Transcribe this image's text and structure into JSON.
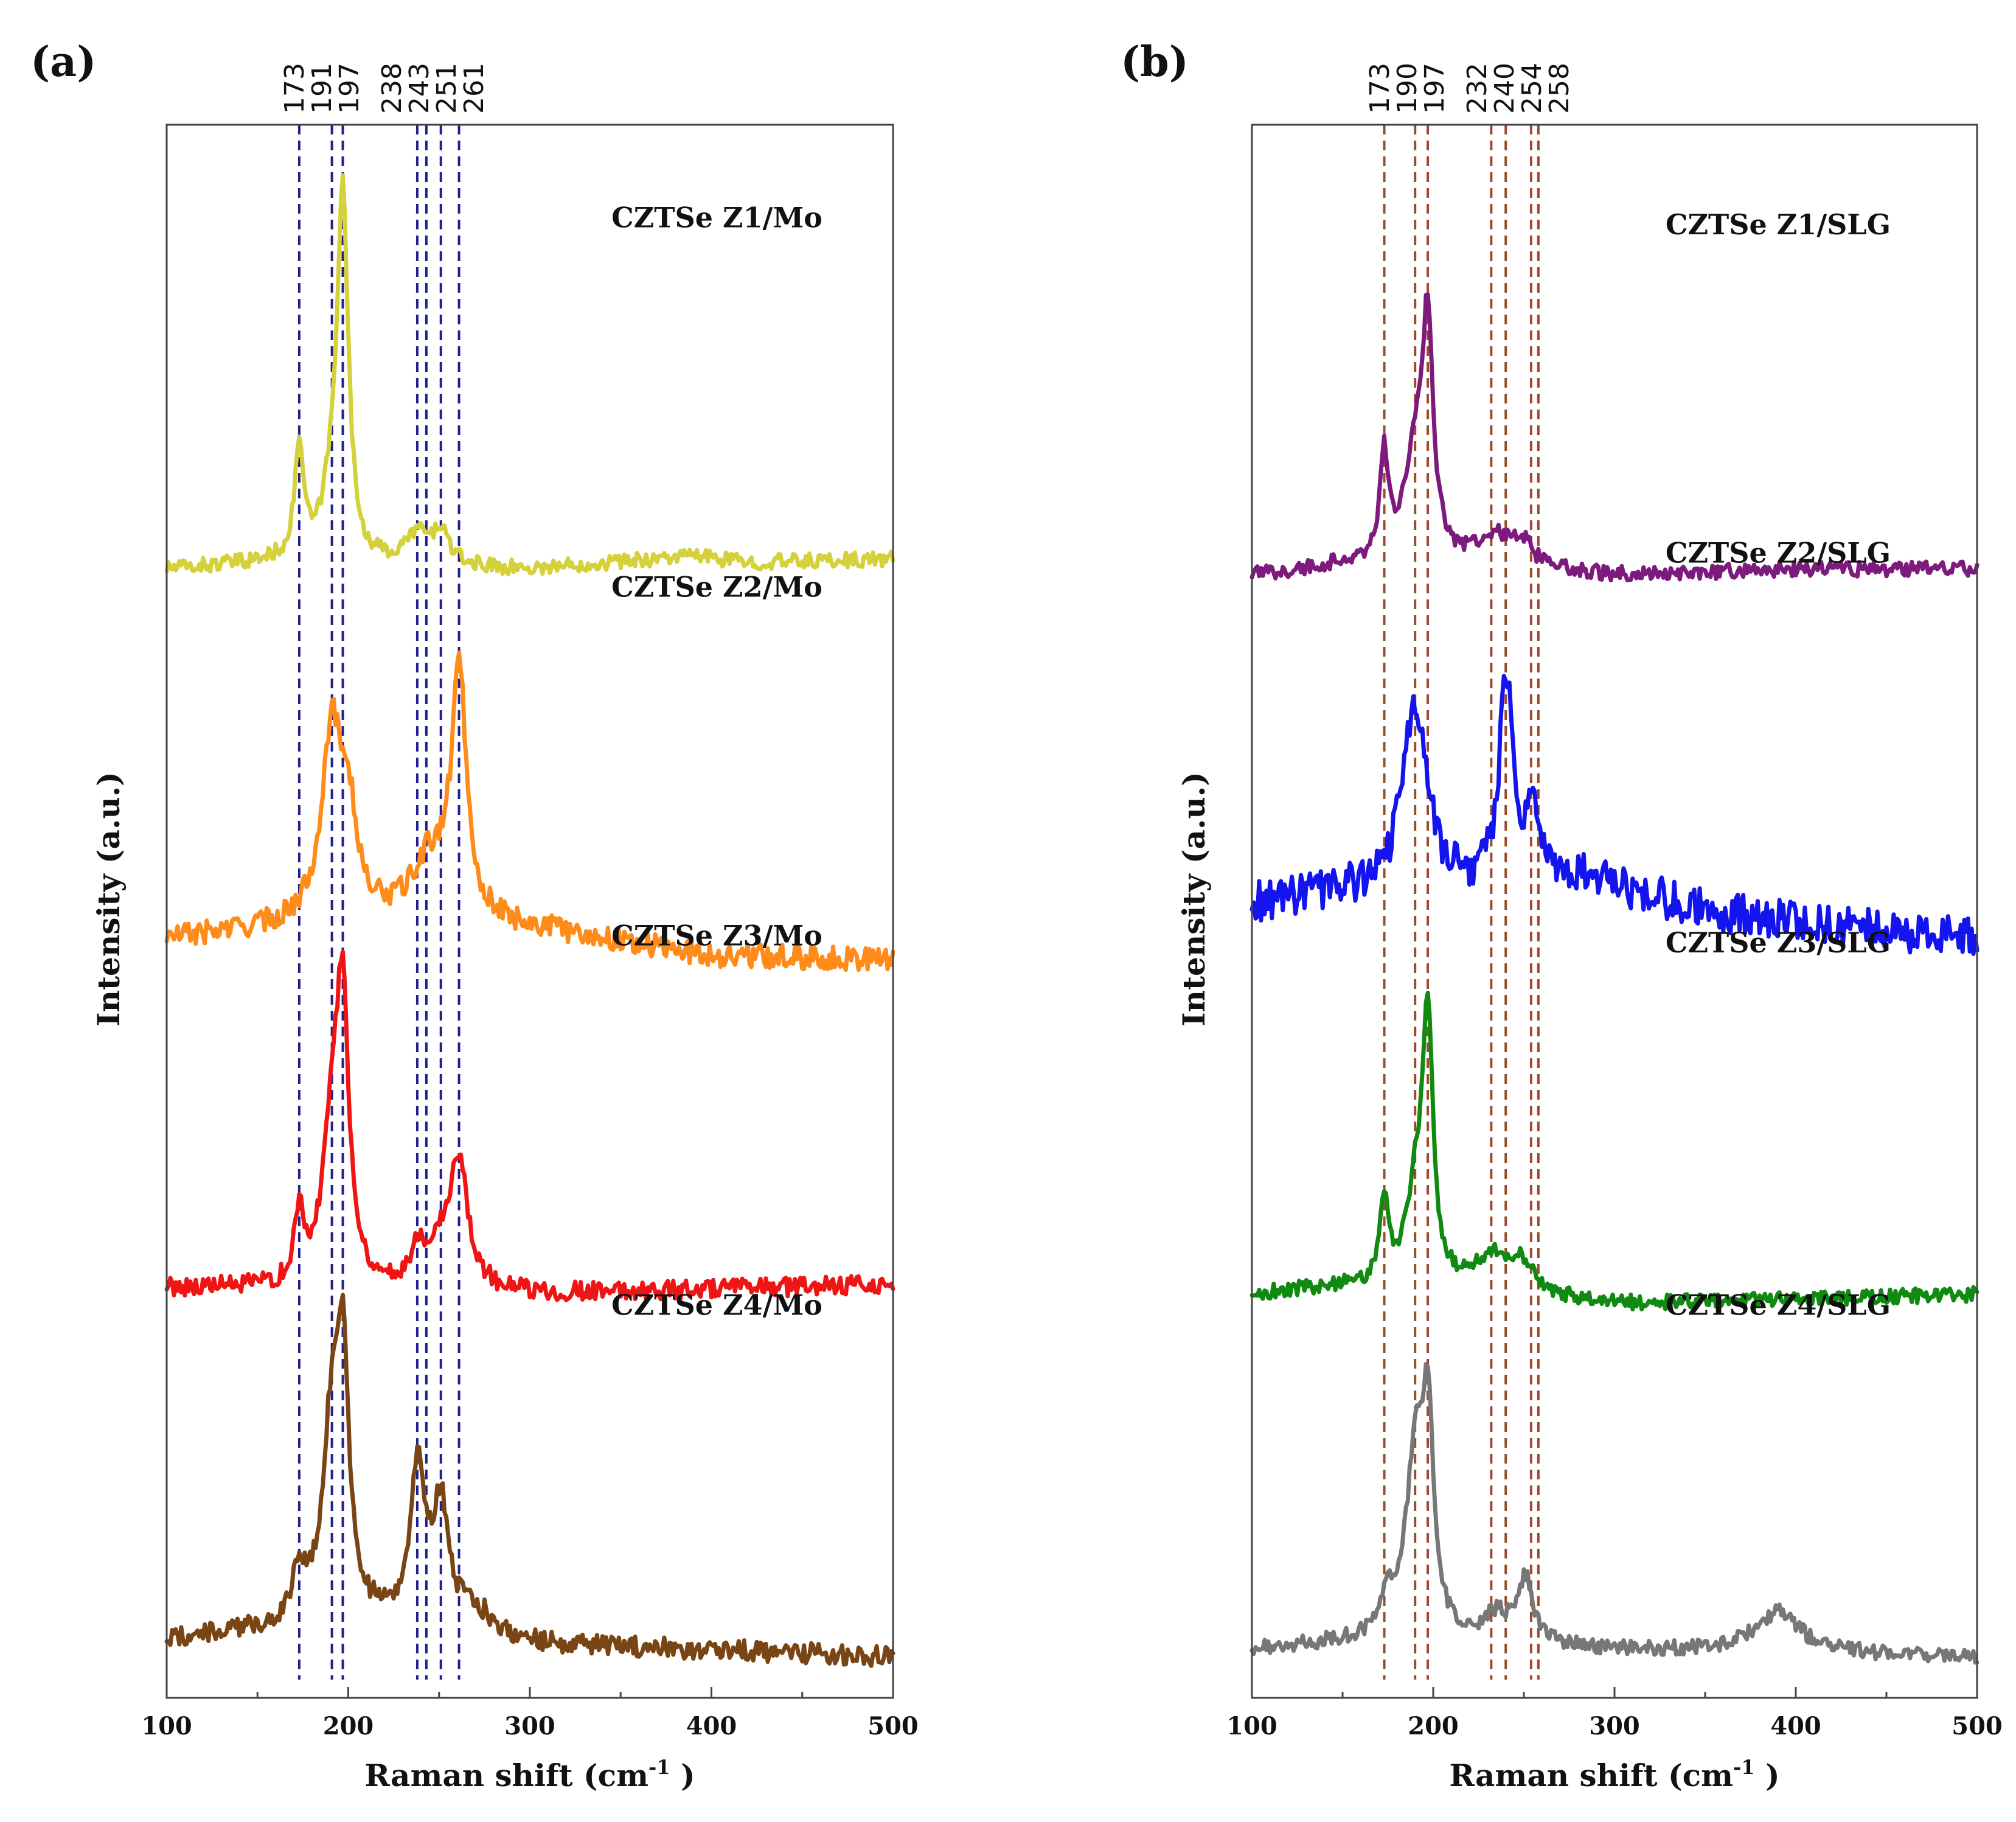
{
  "chart_data": [
    {
      "type": "line",
      "panel_label": "(a)",
      "xlabel": "Raman shift (cm",
      "xlabel_sup": "-1",
      "xlabel_end": " )",
      "ylabel": "Intensity (a.u.)",
      "xlim": [
        100,
        500
      ],
      "xticks": [
        100,
        200,
        300,
        400,
        500
      ],
      "ylim": [
        0,
        4.6
      ],
      "peak_line_color": "#1f1f8f",
      "peak_lines": [
        173,
        191,
        197,
        238,
        243,
        251,
        261
      ],
      "series": [
        {
          "name": "CZTSe Z1/Mo",
          "color": "#d4d13a",
          "offset": 3.3,
          "noise": 0.022,
          "base": [
            [
              100,
              0.0
            ],
            [
              160,
              0.02
            ],
            [
              300,
              0.0
            ],
            [
              390,
              0.04
            ],
            [
              420,
              0.02
            ],
            [
              500,
              0.03
            ]
          ],
          "peaks": [
            [
              173,
              0.33,
              3
            ],
            [
              191,
              0.18,
              6
            ],
            [
              197,
              1.05,
              3.5
            ],
            [
              238,
              0.09,
              7
            ],
            [
              251,
              0.1,
              5
            ]
          ]
        },
        {
          "name": "CZTSe Z2/Mo",
          "color": "#ff8c1a",
          "offset": 2.22,
          "noise": 0.035,
          "base": [
            [
              100,
              0.0
            ],
            [
              200,
              0.05
            ],
            [
              300,
              0.03
            ],
            [
              400,
              -0.05
            ],
            [
              500,
              -0.06
            ]
          ],
          "peaks": [
            [
              191,
              0.55,
              7
            ],
            [
              200,
              0.25,
              5
            ],
            [
              245,
              0.17,
              12
            ],
            [
              261,
              0.72,
              5
            ]
          ]
        },
        {
          "name": "CZTSe Z3/Mo",
          "color": "#f01515",
          "offset": 1.2,
          "noise": 0.028,
          "base": [
            [
              100,
              0.0
            ],
            [
              300,
              -0.02
            ],
            [
              500,
              0.01
            ]
          ],
          "peaks": [
            [
              173,
              0.2,
              3
            ],
            [
              191,
              0.45,
              6
            ],
            [
              197,
              0.75,
              4
            ],
            [
              238,
              0.1,
              4
            ],
            [
              250,
              0.12,
              8
            ],
            [
              261,
              0.36,
              6
            ]
          ]
        },
        {
          "name": "CZTSe Z4/Mo",
          "color": "#7a4514",
          "offset": 0.12,
          "noise": 0.03,
          "base": [
            [
              100,
              0.05
            ],
            [
              200,
              0.1
            ],
            [
              300,
              0.03
            ],
            [
              400,
              0.02
            ],
            [
              500,
              0.0
            ]
          ],
          "peaks": [
            [
              173,
              0.15,
              4
            ],
            [
              191,
              0.55,
              6
            ],
            [
              197,
              0.65,
              4
            ],
            [
              238,
              0.45,
              5
            ],
            [
              251,
              0.35,
              5
            ],
            [
              270,
              0.07,
              15
            ]
          ]
        }
      ]
    },
    {
      "type": "line",
      "panel_label": "(b)",
      "xlabel": "Raman shift (cm",
      "xlabel_sup": "-1",
      "xlabel_end": " )",
      "ylabel": "Intensity (a.u.)",
      "xlim": [
        100,
        500
      ],
      "xticks": [
        100,
        200,
        300,
        400,
        500
      ],
      "ylim": [
        0,
        4.6
      ],
      "peak_line_color": "#9c4a2a",
      "peak_lines": [
        173,
        190,
        197,
        232,
        240,
        254,
        258
      ],
      "series": [
        {
          "name": "CZTSe Z1/SLG",
          "color": "#7d1a7d",
          "offset": 3.28,
          "noise": 0.022,
          "base": [
            [
              100,
              0.0
            ],
            [
              150,
              0.03
            ],
            [
              300,
              0.0
            ],
            [
              400,
              0.02
            ],
            [
              500,
              0.02
            ]
          ],
          "peaks": [
            [
              173,
              0.3,
              3
            ],
            [
              190,
              0.3,
              7
            ],
            [
              197,
              0.65,
              3.5
            ],
            [
              235,
              0.1,
              15
            ],
            [
              250,
              0.05,
              5
            ]
          ]
        },
        {
          "name": "CZTSe Z2/SLG",
          "color": "#1414ee",
          "offset": 2.32,
          "noise": 0.06,
          "base": [
            [
              100,
              0.0
            ],
            [
              160,
              0.04
            ],
            [
              220,
              0.05
            ],
            [
              280,
              0.08
            ],
            [
              350,
              -0.02
            ],
            [
              420,
              -0.06
            ],
            [
              500,
              -0.1
            ]
          ],
          "peaks": [
            [
              190,
              0.55,
              8
            ],
            [
              240,
              0.6,
              4
            ],
            [
              255,
              0.2,
              6
            ]
          ]
        },
        {
          "name": "CZTSe Z3/SLG",
          "color": "#108a10",
          "offset": 1.18,
          "noise": 0.022,
          "base": [
            [
              100,
              0.0
            ],
            [
              150,
              0.02
            ],
            [
              300,
              -0.03
            ],
            [
              500,
              0.0
            ]
          ],
          "peaks": [
            [
              173,
              0.25,
              3
            ],
            [
              190,
              0.25,
              6
            ],
            [
              197,
              0.75,
              3.5
            ],
            [
              235,
              0.12,
              15
            ],
            [
              250,
              0.06,
              5
            ]
          ]
        },
        {
          "name": "CZTSe Z4/SLG",
          "color": "#777777",
          "offset": 0.12,
          "noise": 0.022,
          "base": [
            [
              100,
              0.02
            ],
            [
              150,
              0.04
            ],
            [
              300,
              0.02
            ],
            [
              500,
              0.0
            ]
          ],
          "peaks": [
            [
              175,
              0.1,
              6
            ],
            [
              190,
              0.5,
              6
            ],
            [
              197,
              0.58,
              4
            ],
            [
              235,
              0.08,
              10
            ],
            [
              251,
              0.18,
              5
            ],
            [
              390,
              0.12,
              15
            ]
          ]
        }
      ]
    }
  ]
}
